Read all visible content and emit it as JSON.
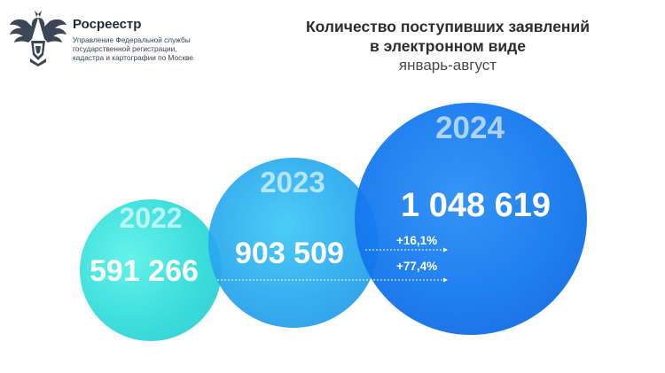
{
  "header": {
    "org_name": "Росреестр",
    "org_subtitle": "Управление Федеральной службы\nгосударственной регистрации,\nкадастра и картографии по Москве",
    "logo_icon": "double-headed-eagle-emblem-icon"
  },
  "title": "Количество поступивших заявлений\nв электронном виде",
  "period": "январь-август",
  "chart_data": {
    "type": "bubble",
    "title": "Количество поступивших заявлений в электронном виде",
    "subtitle": "январь-август",
    "categories": [
      "2022",
      "2023",
      "2024"
    ],
    "values": [
      591266,
      903509,
      1048619
    ],
    "value_labels": [
      "591 266",
      "903 509",
      "1 048 619"
    ],
    "annotations": [
      {
        "text": "+16,1%",
        "from": "2023",
        "to": "2024"
      },
      {
        "text": "+77,4%",
        "from": "2022",
        "to": "2024"
      }
    ],
    "colors": [
      "#35dcda",
      "#29a8ee",
      "#1478ee"
    ]
  }
}
